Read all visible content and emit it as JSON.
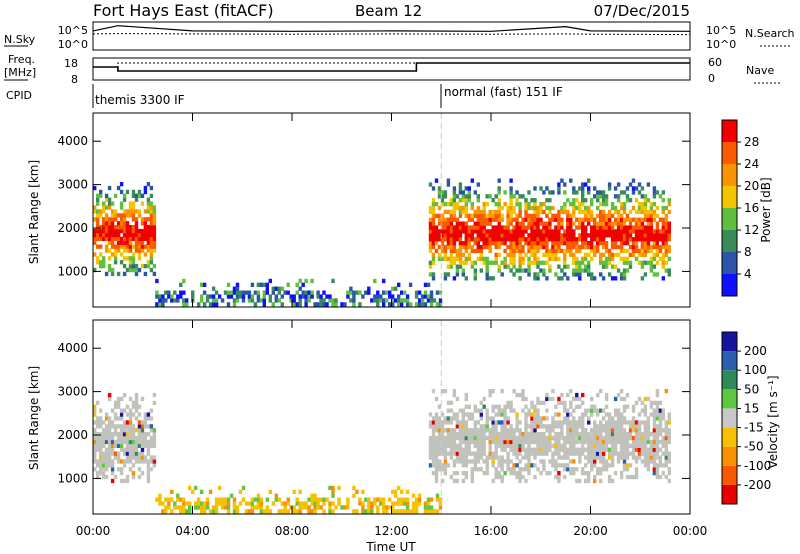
{
  "header": {
    "title": "Fort Hays East (fitACF)",
    "beam": "Beam 12",
    "date": "07/Dec/2015"
  },
  "top_panels": {
    "nsky_label": "N.Sky",
    "nsky_ticks": [
      "10^5",
      "10^0"
    ],
    "nsearch_label": "N.Search",
    "nsearch_ticks": [
      "10^5",
      "10^0"
    ],
    "freq_label": "Freq.",
    "freq_unit": "[MHz]",
    "freq_ticks": [
      "18",
      "8"
    ],
    "nave_label": "Nave",
    "nave_ticks": [
      "60",
      "0"
    ],
    "cpid_label": "CPID",
    "cpid_modes": [
      "themis 3300 IF",
      "normal (fast) 151 IF"
    ]
  },
  "colors": {
    "power_scale": [
      "#1010ff",
      "#2a55a8",
      "#3a8a5a",
      "#5fbf3f",
      "#f2c500",
      "#f99500",
      "#fa5a00",
      "#f20000"
    ],
    "velocity_scale": [
      "#1414a0",
      "#2a5fb0",
      "#2e8b57",
      "#5cc83e",
      "#c8c8c8",
      "#f7c100",
      "#f99000",
      "#fa5800",
      "#e80000"
    ],
    "ground_gray": "#c2c2bd"
  },
  "chart_data": [
    {
      "type": "line",
      "title": "N.Sky / N.Search",
      "x": [
        "00:00",
        "01:00",
        "04:00",
        "08:00",
        "12:00",
        "16:00",
        "19:00",
        "20:00",
        "24:00"
      ],
      "series": [
        {
          "name": "N.Sky",
          "values": [
            3000,
            30000,
            3000,
            2500,
            3000,
            2500,
            20000,
            3000,
            2500
          ]
        },
        {
          "name": "N.Search",
          "values": [
            800,
            900,
            800,
            700,
            800,
            700,
            800,
            700,
            600
          ]
        }
      ],
      "ylim": [
        1,
        100000
      ],
      "yscale": "log"
    },
    {
      "type": "line",
      "title": "Freq. / Nave",
      "x": [
        "00:00",
        "01:00",
        "13:00",
        "24:00"
      ],
      "series": [
        {
          "name": "Freq.",
          "values": [
            14,
            12,
            16,
            16
          ]
        },
        {
          "name": "Nave",
          "values": [
            14,
            16,
            16,
            16
          ]
        }
      ],
      "ylim_freq": [
        8,
        18
      ],
      "ylim_nave": [
        0,
        60
      ]
    },
    {
      "type": "heatmap",
      "title": "Power",
      "xlabel": "Time UT",
      "ylabel": "Slant Range [km]",
      "x_ticks": [
        "00:00",
        "04:00",
        "08:00",
        "12:00",
        "16:00",
        "20:00",
        "00:00"
      ],
      "y_ticks": [
        "1000",
        "2000",
        "3000",
        "4000"
      ],
      "xlim_hours": [
        0,
        24
      ],
      "ylim_km": [
        180,
        4650
      ],
      "colorbar": {
        "label": "Power [dB]",
        "ticks": [
          "28",
          "24",
          "20",
          "16",
          "12",
          "8",
          "4"
        ]
      },
      "features": [
        {
          "name": "early echo band",
          "t_hours": [
            0.0,
            2.5
          ],
          "range_km": [
            900,
            3000
          ],
          "peak_db": 28
        },
        {
          "name": "low-range scatter",
          "t_hours": [
            2.5,
            14.0
          ],
          "range_km": [
            200,
            800
          ],
          "peak_db": 10
        },
        {
          "name": "main echo band",
          "t_hours": [
            13.5,
            23.2
          ],
          "range_km": [
            800,
            3100
          ],
          "peak_db": 30
        }
      ]
    },
    {
      "type": "heatmap",
      "title": "Velocity",
      "xlabel": "Time UT",
      "ylabel": "Slant Range [km]",
      "x_ticks": [
        "00:00",
        "04:00",
        "08:00",
        "12:00",
        "16:00",
        "20:00",
        "00:00"
      ],
      "y_ticks": [
        "1000",
        "2000",
        "3000",
        "4000"
      ],
      "xlim_hours": [
        0,
        24
      ],
      "ylim_km": [
        180,
        4650
      ],
      "colorbar": {
        "label": "Velocity [m s⁻¹]",
        "ticks": [
          "200",
          "100",
          "50",
          "15",
          "-15",
          "-50",
          "-100",
          "-200"
        ]
      },
      "features": [
        {
          "name": "early echo band",
          "t_hours": [
            0.0,
            2.5
          ],
          "range_km": [
            900,
            2900
          ],
          "dominant": "ground scatter"
        },
        {
          "name": "low-range scatter",
          "t_hours": [
            2.5,
            14.0
          ],
          "range_km": [
            200,
            800
          ],
          "velocity_ms": -40
        },
        {
          "name": "main echo band",
          "t_hours": [
            13.5,
            23.2
          ],
          "range_km": [
            900,
            3000
          ],
          "dominant": "ground scatter"
        }
      ]
    }
  ]
}
